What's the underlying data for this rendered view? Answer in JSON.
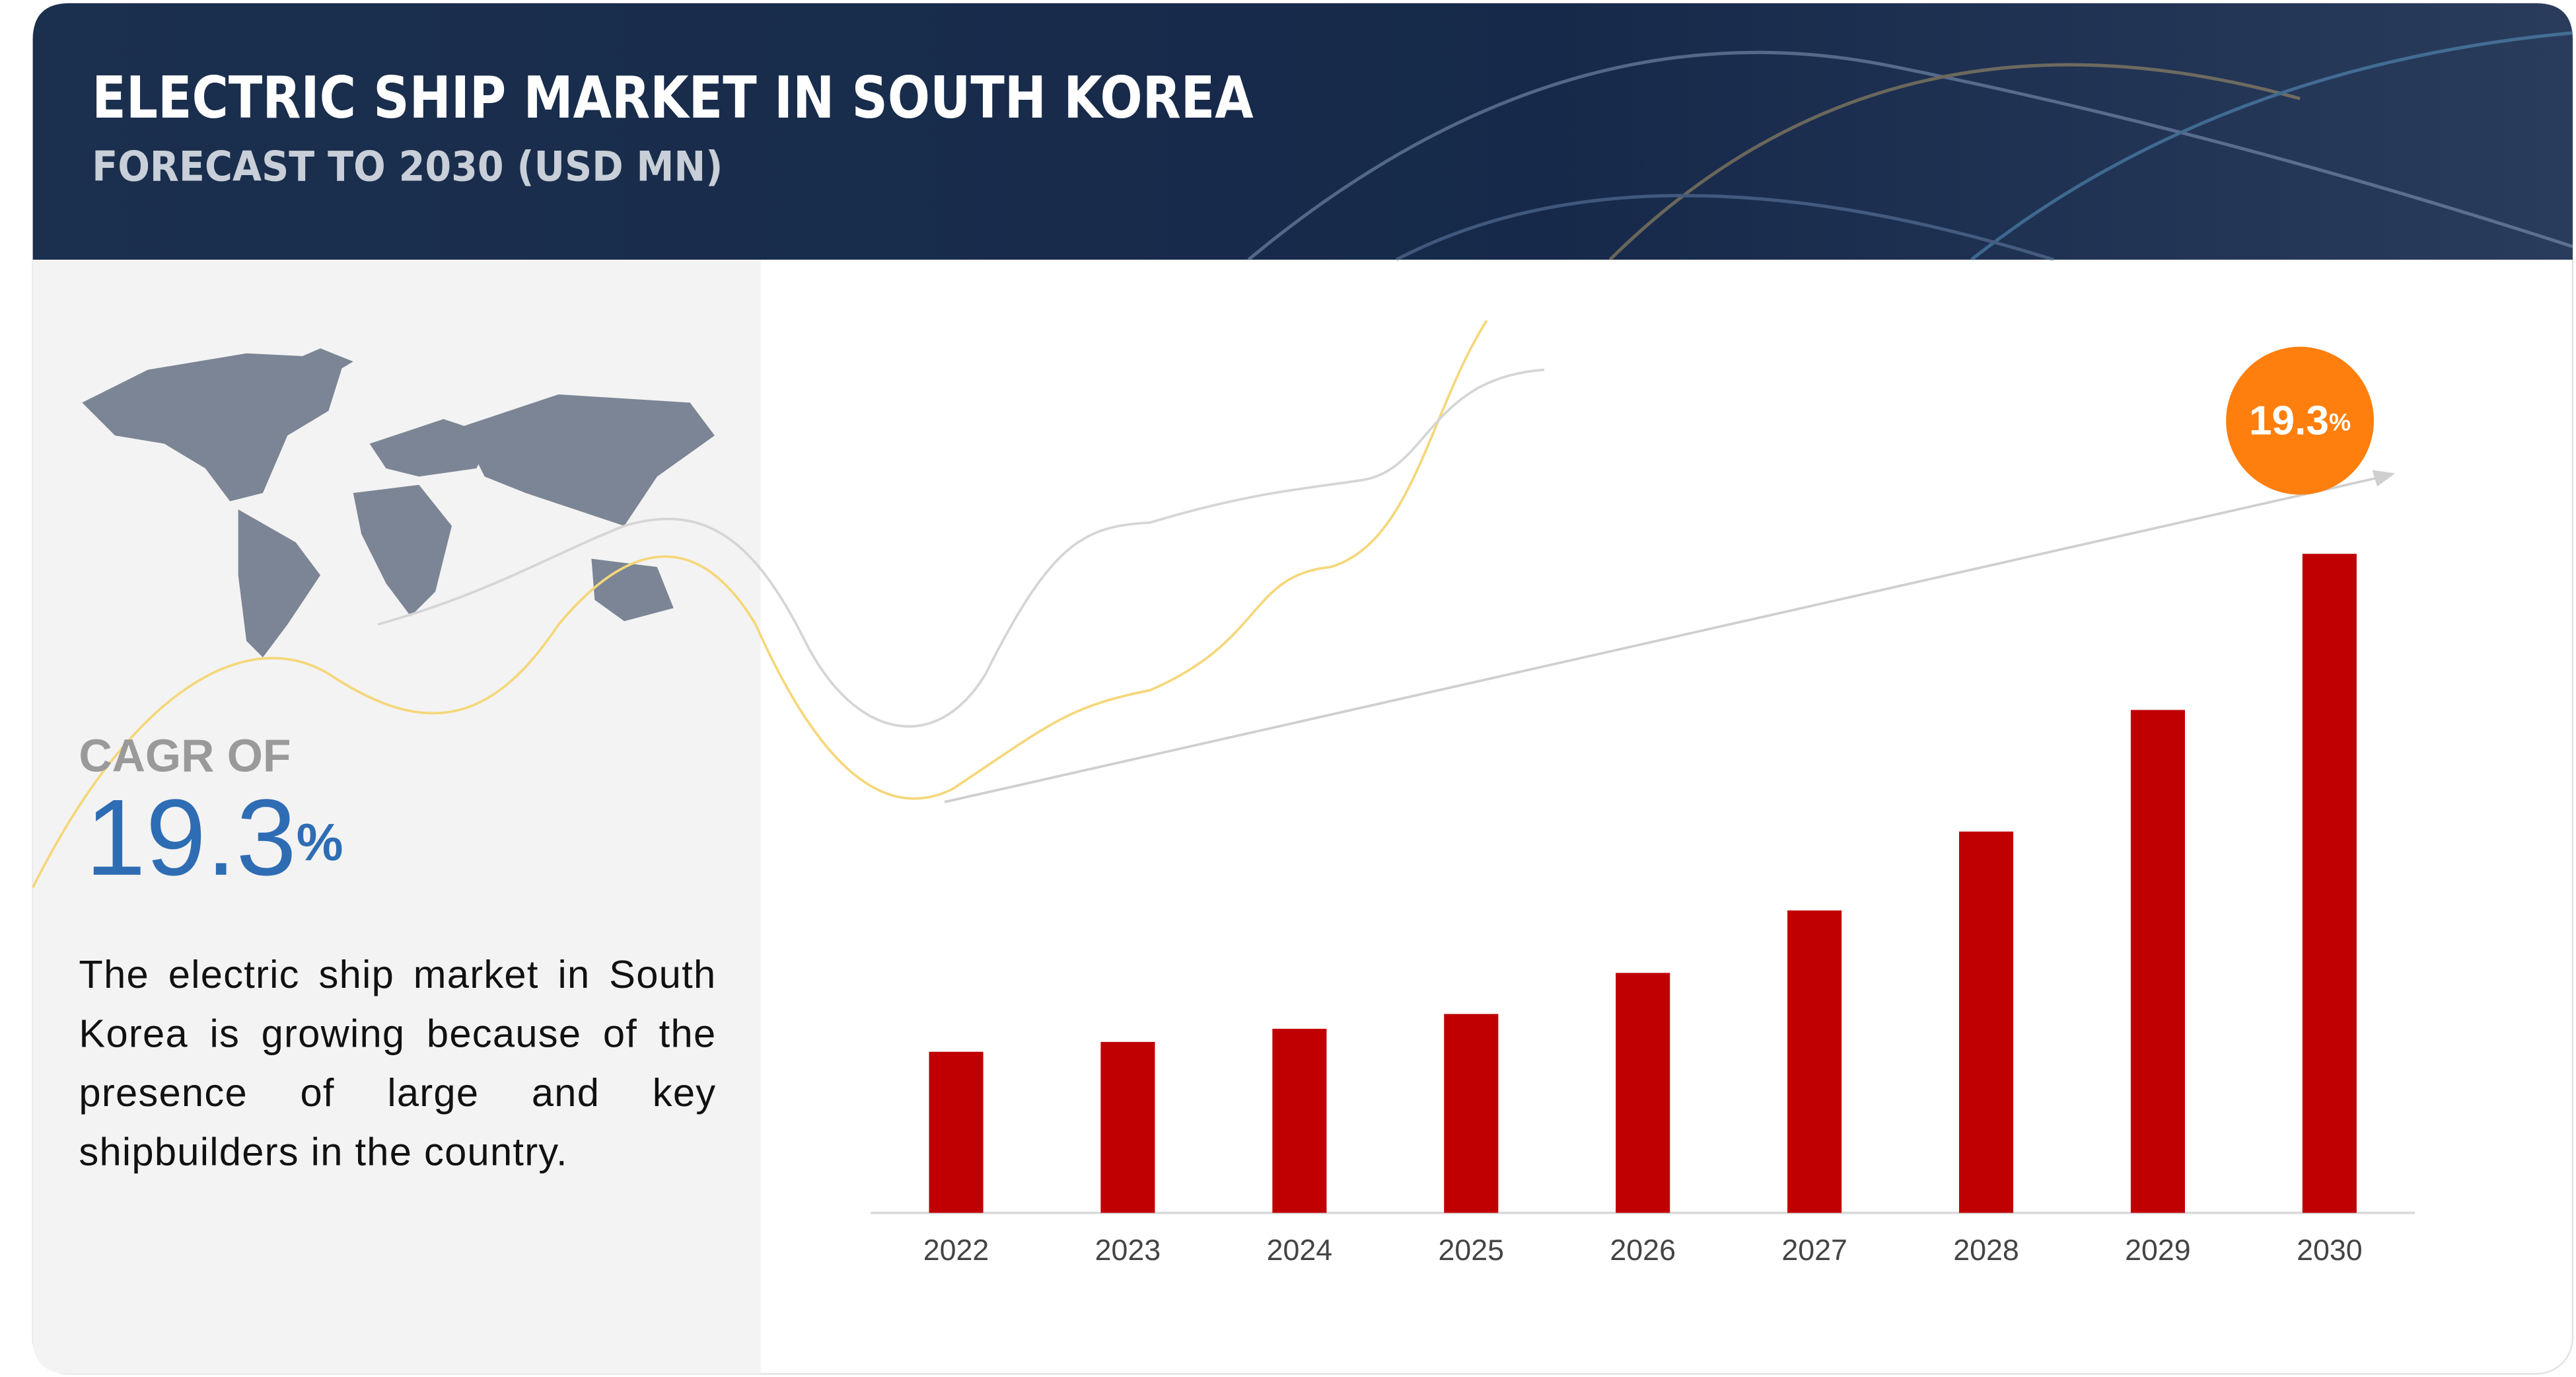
{
  "chart_data": {
    "type": "bar",
    "title": "ELECTRIC SHIP MARKET IN SOUTH KOREA",
    "subtitle": "FORECAST TO 2030 (USD MN)",
    "cagr_label": "CAGR OF",
    "cagr_value": "19.3",
    "cagr_unit": "%",
    "description": "The electric ship market in South Korea is growing because of the presence of large and key shipbuilders in the country.",
    "categories": [
      "2022",
      "2023",
      "2024",
      "2025",
      "2026",
      "2027",
      "2028",
      "2029",
      "2030"
    ],
    "values": [
      98,
      104,
      112,
      121,
      146,
      184,
      232,
      306,
      401
    ],
    "color": "#c00000"
  }
}
